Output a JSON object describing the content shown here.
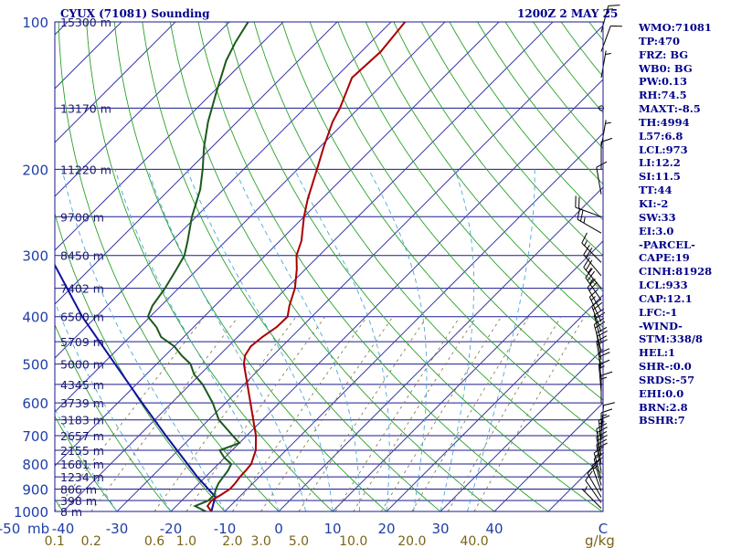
{
  "title": {
    "left": "CYUX (71081) Sounding",
    "right": "1200Z  2 MAY 25"
  },
  "indices": [
    "WMO:71081",
    "TP:470",
    "FRZ: BG",
    "WB0: BG",
    "PW:0.13",
    "RH:74.5",
    "MAXT:-8.5",
    "TH:4994",
    "L57:6.8",
    "LCL:973",
    "LI:12.2",
    "SI:11.5",
    "TT:44",
    "KI:-2",
    "SW:33",
    "EI:3.0",
    "-PARCEL-",
    "CAPE:19",
    "CINH:81928",
    "LCL:933",
    "CAP:12.1",
    "LFC:-1",
    "-WIND-",
    "STM:338/8",
    "HEL:1",
    "SHR-:0.0",
    "SRDS:-57",
    "EHI:0.0",
    "BRN:2.8",
    "BSHR:7"
  ],
  "colors": {
    "isobar": "#1a1a8c",
    "isotherm": "#3a3aa8",
    "dry_adiabat": "#2aa02a",
    "moist_adiabat": "#4aa8d8",
    "mixing_ratio": "#8a8050",
    "temperature": "#aa0000",
    "dewpoint": "#1a5a1a",
    "parcel": "#1010a0",
    "wind": "#000000"
  },
  "chart_data": {
    "type": "line",
    "title": "CYUX (71081) Sounding",
    "pressure_unit": "mb",
    "temperature_unit": "°C",
    "mixing_ratio_unit": "g/kg",
    "skew_log_p": true,
    "pressure_range": [
      1000,
      100
    ],
    "pressure_ticks": [
      {
        "p": 100,
        "label": "100"
      },
      {
        "p": 200,
        "label": "200"
      },
      {
        "p": 300,
        "label": "300"
      },
      {
        "p": 400,
        "label": "400"
      },
      {
        "p": 500,
        "label": "500"
      },
      {
        "p": 600,
        "label": "600"
      },
      {
        "p": 700,
        "label": "700"
      },
      {
        "p": 800,
        "label": "800"
      },
      {
        "p": 900,
        "label": "900"
      },
      {
        "p": 1000,
        "label": "1000"
      }
    ],
    "pressure_axis_unit": "mb",
    "height_levels": [
      {
        "p": 100,
        "label": "15300 m"
      },
      {
        "p": 150,
        "label": "13170 m"
      },
      {
        "p": 200,
        "label": "11220 m"
      },
      {
        "p": 250,
        "label": "9700 m"
      },
      {
        "p": 300,
        "label": "8450 m"
      },
      {
        "p": 350,
        "label": "7402 m"
      },
      {
        "p": 400,
        "label": "6500 m"
      },
      {
        "p": 450,
        "label": "5709 m"
      },
      {
        "p": 500,
        "label": "5000 m"
      },
      {
        "p": 550,
        "label": "4345 m"
      },
      {
        "p": 600,
        "label": "3739 m"
      },
      {
        "p": 650,
        "label": "3183 m"
      },
      {
        "p": 700,
        "label": "2657 m"
      },
      {
        "p": 750,
        "label": "2155 m"
      },
      {
        "p": 800,
        "label": "1681 m"
      },
      {
        "p": 850,
        "label": "1234 m"
      },
      {
        "p": 900,
        "label": "806 m"
      },
      {
        "p": 950,
        "label": "398 m"
      },
      {
        "p": 1000,
        "label": "8 m"
      }
    ],
    "temperature_ticks": [
      {
        "t": -50,
        "label": "-50"
      },
      {
        "t": -40,
        "label": "-40"
      },
      {
        "t": -30,
        "label": "-30"
      },
      {
        "t": -20,
        "label": "-20"
      },
      {
        "t": -10,
        "label": "-10"
      },
      {
        "t": 0,
        "label": "0"
      },
      {
        "t": 10,
        "label": "10"
      },
      {
        "t": 20,
        "label": "20"
      },
      {
        "t": 30,
        "label": "30"
      },
      {
        "t": 40,
        "label": "40"
      }
    ],
    "mixing_ratio_ticks": [
      {
        "w": 0.1,
        "label": "0.1"
      },
      {
        "w": 0.2,
        "label": "0.2"
      },
      {
        "w": 0.6,
        "label": "0.6"
      },
      {
        "w": 1.0,
        "label": "1.0"
      },
      {
        "w": 2.0,
        "label": "2.0"
      },
      {
        "w": 3.0,
        "label": "3.0"
      },
      {
        "w": 5.0,
        "label": "5.0"
      },
      {
        "w": 10.0,
        "label": "10.0"
      },
      {
        "w": 20.0,
        "label": "20.0"
      },
      {
        "w": 40.0,
        "label": "40.0"
      }
    ],
    "temperature_profile": [
      [
        1000,
        -12.5
      ],
      [
        975,
        -14.2
      ],
      [
        950,
        -14.5
      ],
      [
        925,
        -13.8
      ],
      [
        900,
        -13.2
      ],
      [
        875,
        -13.3
      ],
      [
        850,
        -13.6
      ],
      [
        825,
        -13.7
      ],
      [
        800,
        -13.9
      ],
      [
        750,
        -15.6
      ],
      [
        700,
        -18.3
      ],
      [
        650,
        -21.7
      ],
      [
        600,
        -25.4
      ],
      [
        550,
        -29.4
      ],
      [
        500,
        -33.8
      ],
      [
        480,
        -35.2
      ],
      [
        460,
        -35.8
      ],
      [
        440,
        -35.4
      ],
      [
        420,
        -34.6
      ],
      [
        400,
        -34.5
      ],
      [
        380,
        -36.2
      ],
      [
        350,
        -38.4
      ],
      [
        320,
        -41.6
      ],
      [
        300,
        -44.2
      ],
      [
        280,
        -46.0
      ],
      [
        250,
        -50.0
      ],
      [
        230,
        -52.6
      ],
      [
        200,
        -56.4
      ],
      [
        180,
        -59.3
      ],
      [
        160,
        -62.3
      ],
      [
        150,
        -63.5
      ],
      [
        130,
        -66.9
      ],
      [
        115,
        -66.4
      ],
      [
        100,
        -67.4
      ]
    ],
    "dewpoint_profile": [
      [
        1000,
        -13.5
      ],
      [
        975,
        -16.5
      ],
      [
        950,
        -15.1
      ],
      [
        925,
        -15.0
      ],
      [
        900,
        -15.8
      ],
      [
        875,
        -16.4
      ],
      [
        850,
        -16.7
      ],
      [
        825,
        -17.0
      ],
      [
        800,
        -17.6
      ],
      [
        775,
        -20.2
      ],
      [
        750,
        -22.3
      ],
      [
        725,
        -20.0
      ],
      [
        700,
        -22.6
      ],
      [
        650,
        -28.1
      ],
      [
        600,
        -32.4
      ],
      [
        550,
        -37.7
      ],
      [
        525,
        -41.1
      ],
      [
        500,
        -43.7
      ],
      [
        480,
        -47.0
      ],
      [
        460,
        -50.0
      ],
      [
        440,
        -54.2
      ],
      [
        420,
        -56.9
      ],
      [
        400,
        -60.4
      ],
      [
        380,
        -61.6
      ],
      [
        350,
        -62.5
      ],
      [
        320,
        -63.9
      ],
      [
        300,
        -65.0
      ],
      [
        280,
        -67.1
      ],
      [
        250,
        -70.8
      ],
      [
        220,
        -74.3
      ],
      [
        200,
        -77.6
      ],
      [
        180,
        -81.5
      ],
      [
        160,
        -85.4
      ],
      [
        140,
        -89.2
      ],
      [
        120,
        -93.4
      ],
      [
        110,
        -95.1
      ],
      [
        100,
        -96.5
      ]
    ],
    "parcel_profile": [
      [
        1000,
        -12.5
      ],
      [
        933,
        -14.5
      ],
      [
        850,
        -21.5
      ],
      [
        800,
        -25.7
      ],
      [
        700,
        -35.0
      ],
      [
        600,
        -45.5
      ],
      [
        500,
        -57.7
      ],
      [
        400,
        -72.6
      ],
      [
        300,
        -90.0
      ],
      [
        250,
        -101.0
      ],
      [
        200,
        -114.0
      ],
      [
        170,
        -122.0
      ]
    ],
    "wind_barbs": [
      {
        "p": 985,
        "dir": 315,
        "spd": 5
      },
      {
        "p": 960,
        "dir": 325,
        "spd": 10
      },
      {
        "p": 935,
        "dir": 330,
        "spd": 10
      },
      {
        "p": 910,
        "dir": 340,
        "spd": 15
      },
      {
        "p": 885,
        "dir": 345,
        "spd": 15
      },
      {
        "p": 860,
        "dir": 345,
        "spd": 15
      },
      {
        "p": 830,
        "dir": 350,
        "spd": 20
      },
      {
        "p": 800,
        "dir": 350,
        "spd": 20
      },
      {
        "p": 770,
        "dir": 350,
        "spd": 20
      },
      {
        "p": 740,
        "dir": 355,
        "spd": 15
      },
      {
        "p": 715,
        "dir": 0,
        "spd": 15
      },
      {
        "p": 690,
        "dir": 5,
        "spd": 10
      },
      {
        "p": 600,
        "dir": 0,
        "spd": 15
      },
      {
        "p": 570,
        "dir": 355,
        "spd": 15
      },
      {
        "p": 540,
        "dir": 355,
        "spd": 20
      },
      {
        "p": 510,
        "dir": 350,
        "spd": 20
      },
      {
        "p": 490,
        "dir": 350,
        "spd": 20
      },
      {
        "p": 470,
        "dir": 345,
        "spd": 20
      },
      {
        "p": 450,
        "dir": 345,
        "spd": 20
      },
      {
        "p": 430,
        "dir": 340,
        "spd": 20
      },
      {
        "p": 410,
        "dir": 335,
        "spd": 15
      },
      {
        "p": 390,
        "dir": 330,
        "spd": 20
      },
      {
        "p": 370,
        "dir": 325,
        "spd": 25
      },
      {
        "p": 350,
        "dir": 320,
        "spd": 25
      },
      {
        "p": 330,
        "dir": 320,
        "spd": 20
      },
      {
        "p": 310,
        "dir": 315,
        "spd": 15
      },
      {
        "p": 270,
        "dir": 300,
        "spd": 25
      },
      {
        "p": 250,
        "dir": 290,
        "spd": 20
      },
      {
        "p": 225,
        "dir": 350,
        "spd": 10
      },
      {
        "p": 200,
        "dir": 0,
        "spd": 10
      },
      {
        "p": 180,
        "dir": 10,
        "spd": 5
      },
      {
        "p": 150,
        "dir": 0,
        "spd": 0
      },
      {
        "p": 130,
        "dir": 10,
        "spd": 5
      },
      {
        "p": 115,
        "dir": 20,
        "spd": 10
      },
      {
        "p": 105,
        "dir": 15,
        "spd": 15
      }
    ]
  }
}
